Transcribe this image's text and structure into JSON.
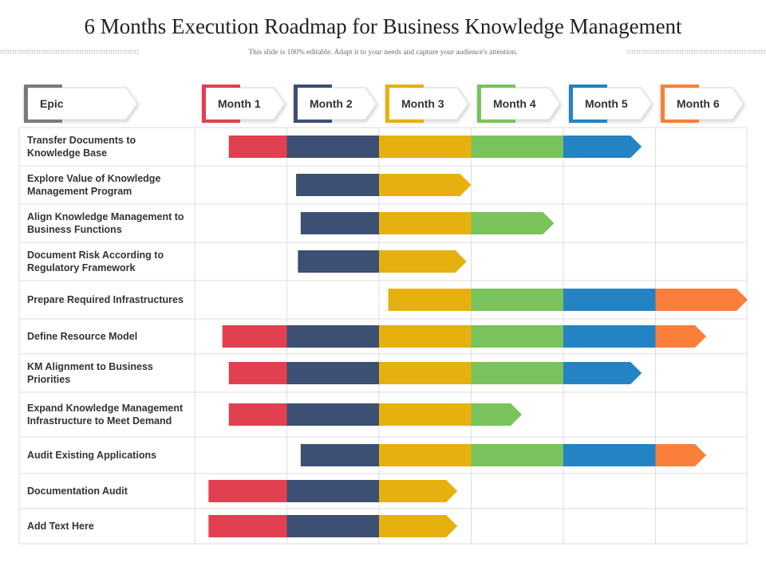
{
  "title": "6 Months Execution Roadmap for Business Knowledge Management",
  "subtitle": "This slide is 100% editable. Adapt it to your needs and capture your audience's attention.",
  "epic_label": "Epic",
  "months": [
    {
      "label": "Month 1",
      "color": "#E0404F"
    },
    {
      "label": "Month 2",
      "color": "#3D4F72"
    },
    {
      "label": "Month 3",
      "color": "#E6B10F"
    },
    {
      "label": "Month 4",
      "color": "#7AC25C"
    },
    {
      "label": "Month 5",
      "color": "#2483C2"
    },
    {
      "label": "Month 6",
      "color": "#FA7F3A"
    }
  ],
  "chart_data": {
    "type": "gantt",
    "time_unit": "month",
    "categories": [
      "Month 1",
      "Month 2",
      "Month 3",
      "Month 4",
      "Month 5",
      "Month 6"
    ],
    "tasks": [
      {
        "name": "Transfer Documents to Knowledge Base",
        "start": 0.37,
        "end": 4.85
      },
      {
        "name": "Explore Value of Knowledge Management Program",
        "start": 1.1,
        "end": 3.0
      },
      {
        "name": "Align Knowledge Management to Business Functions",
        "start": 1.15,
        "end": 3.9
      },
      {
        "name": "Document Risk According to Regulatory Framework",
        "start": 1.12,
        "end": 2.95
      },
      {
        "name": "Prepare Required Infrastructures",
        "start": 2.1,
        "end": 6.0
      },
      {
        "name": "Define Resource Model",
        "start": 0.3,
        "end": 5.55
      },
      {
        "name": "KM Alignment to Business Priorities",
        "start": 0.37,
        "end": 4.85
      },
      {
        "name": "Expand Knowledge Management Infrastructure to Meet Demand",
        "start": 0.37,
        "end": 3.55
      },
      {
        "name": "Audit Existing Applications",
        "start": 1.15,
        "end": 5.55
      },
      {
        "name": "Documentation Audit",
        "start": 0.15,
        "end": 2.85
      },
      {
        "name": "Add Text Here",
        "start": 0.15,
        "end": 2.85
      }
    ]
  }
}
